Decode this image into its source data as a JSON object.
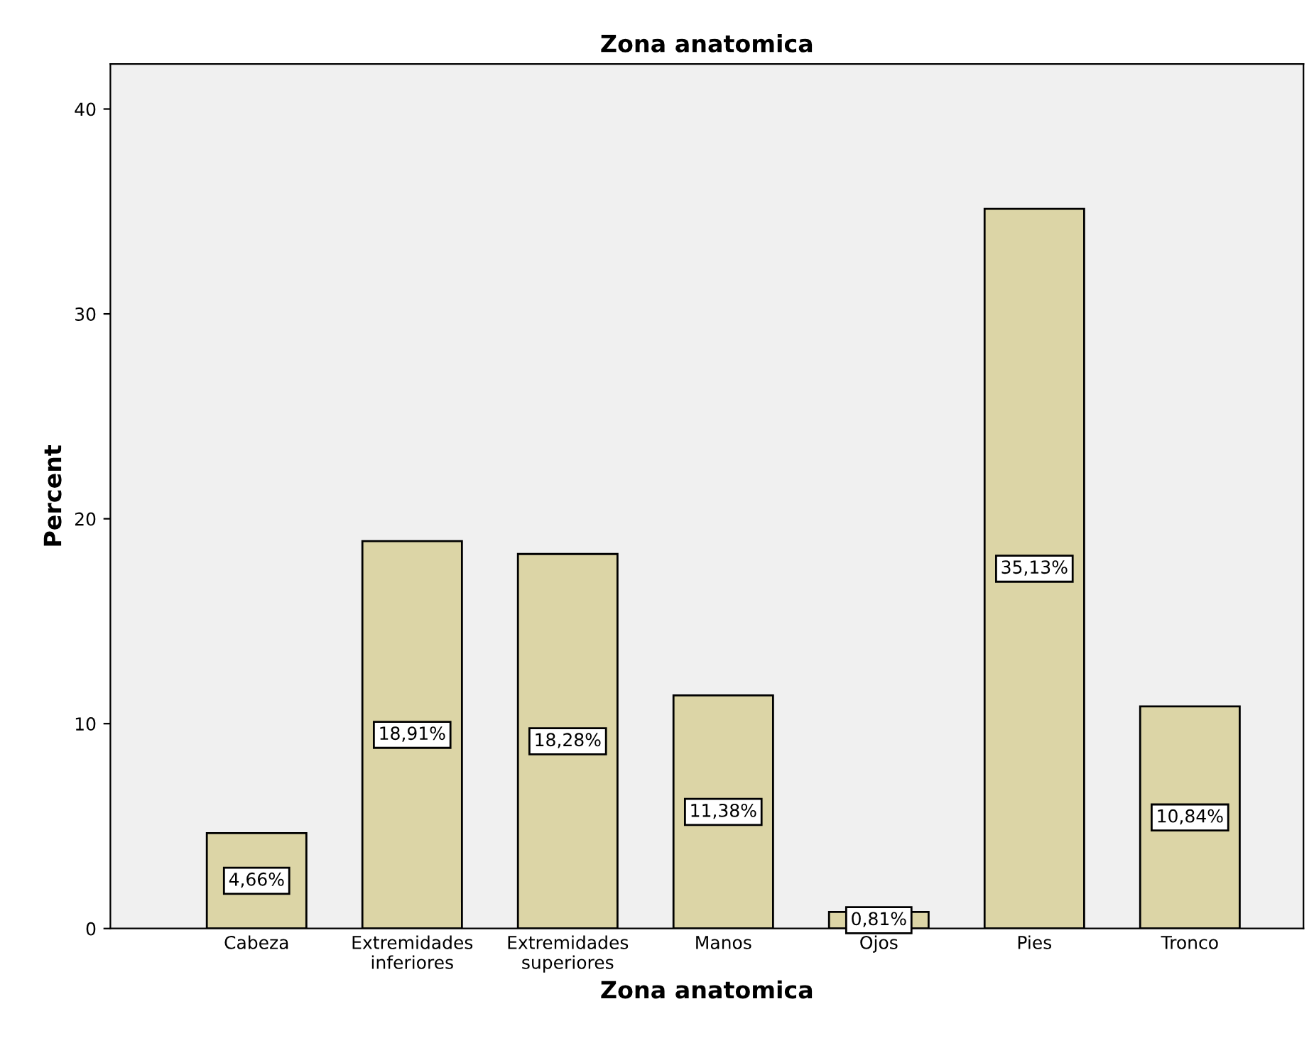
{
  "chart_data": {
    "type": "bar",
    "title": "Zona anatomica",
    "xlabel": "Zona anatomica",
    "ylabel": "Percent",
    "categories": [
      "Cabeza",
      "Extremidades\ninferiores",
      "Extremidades\nsuperiores",
      "Manos",
      "Ojos",
      "Pies",
      "Tronco"
    ],
    "values": [
      4.66,
      18.91,
      18.28,
      11.38,
      0.81,
      35.13,
      10.84
    ],
    "value_labels": [
      "4,66%",
      "18,91%",
      "18,28%",
      "11,38%",
      "0,81%",
      "35,13%",
      "10,84%"
    ],
    "color": "#dcd5a6",
    "ylim": [
      0,
      42.2
    ],
    "yticks": [
      0,
      10,
      20,
      30,
      40
    ],
    "grid": false,
    "legend": false
  }
}
